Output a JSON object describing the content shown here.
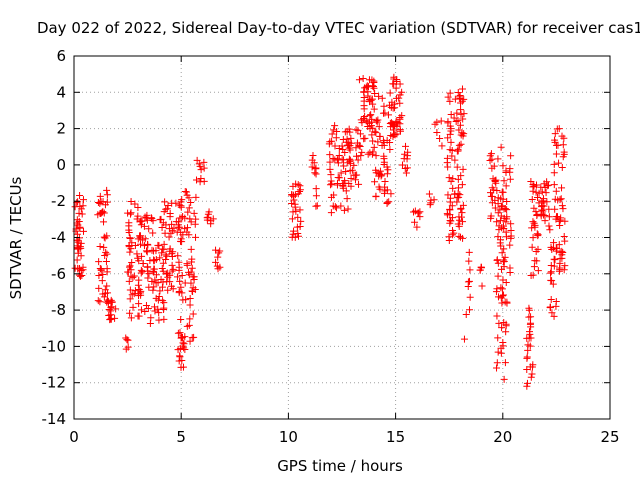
{
  "chart_data": {
    "type": "scatter",
    "title": "Day 022 of 2022, Sidereal Day-to-day VTEC variation (SDTVAR) for receiver cas1",
    "xlabel": "GPS time / hours",
    "ylabel": "SDTVAR / TECUs",
    "xlim": [
      0,
      25
    ],
    "ylim": [
      -14,
      6
    ],
    "xticks": [
      0,
      5,
      10,
      15,
      20,
      25
    ],
    "yticks": [
      -14,
      -12,
      -10,
      -8,
      -6,
      -4,
      -2,
      0,
      2,
      4,
      6
    ],
    "grid": true,
    "marker": "+",
    "series": [
      {
        "name": "SDTVAR",
        "color": "#ff0000",
        "clusters": [
          {
            "x": [
              0.05,
              0.45
            ],
            "y": [
              -6.2,
              -1.6
            ],
            "n": 45
          },
          {
            "x": [
              1.1,
              1.6
            ],
            "y": [
              -7.6,
              -1.4
            ],
            "n": 45
          },
          {
            "x": [
              1.6,
              1.95
            ],
            "y": [
              -8.6,
              -7.4
            ],
            "n": 18
          },
          {
            "x": [
              2.4,
              2.6
            ],
            "y": [
              -10.2,
              -9.3
            ],
            "n": 5
          },
          {
            "x": [
              2.5,
              3.5
            ],
            "y": [
              -8.6,
              -2.0
            ],
            "n": 90
          },
          {
            "x": [
              3.5,
              4.2
            ],
            "y": [
              -8.8,
              -2.6
            ],
            "n": 55
          },
          {
            "x": [
              4.2,
              5.0
            ],
            "y": [
              -7.0,
              -2.0
            ],
            "n": 55
          },
          {
            "x": [
              4.85,
              5.2
            ],
            "y": [
              -11.2,
              -9.0
            ],
            "n": 18
          },
          {
            "x": [
              4.9,
              5.7
            ],
            "y": [
              -9.8,
              -1.3
            ],
            "n": 65
          },
          {
            "x": [
              5.7,
              6.1
            ],
            "y": [
              -1.2,
              0.3
            ],
            "n": 10
          },
          {
            "x": [
              6.2,
              6.5
            ],
            "y": [
              -3.3,
              -2.5
            ],
            "n": 8
          },
          {
            "x": [
              6.6,
              6.85
            ],
            "y": [
              -5.8,
              -4.6
            ],
            "n": 8
          },
          {
            "x": [
              10.1,
              10.6
            ],
            "y": [
              -4.0,
              -0.9
            ],
            "n": 30
          },
          {
            "x": [
              11.1,
              11.4
            ],
            "y": [
              -3.6,
              0.6
            ],
            "n": 12
          },
          {
            "x": [
              11.9,
              12.8
            ],
            "y": [
              -2.7,
              2.2
            ],
            "n": 60
          },
          {
            "x": [
              12.8,
              13.3
            ],
            "y": [
              -1.2,
              2.0
            ],
            "n": 30
          },
          {
            "x": [
              13.3,
              14.0
            ],
            "y": [
              0.5,
              4.8
            ],
            "n": 55
          },
          {
            "x": [
              14.0,
              14.8
            ],
            "y": [
              -2.2,
              4.0
            ],
            "n": 60
          },
          {
            "x": [
              14.8,
              15.3
            ],
            "y": [
              1.5,
              4.9
            ],
            "n": 40
          },
          {
            "x": [
              15.3,
              15.6
            ],
            "y": [
              -0.6,
              1.1
            ],
            "n": 10
          },
          {
            "x": [
              15.8,
              16.2
            ],
            "y": [
              -3.6,
              -2.4
            ],
            "n": 8
          },
          {
            "x": [
              16.5,
              16.8
            ],
            "y": [
              -2.6,
              -1.6
            ],
            "n": 5
          },
          {
            "x": [
              16.8,
              17.2
            ],
            "y": [
              0.9,
              3.2
            ],
            "n": 6
          },
          {
            "x": [
              17.4,
              18.2
            ],
            "y": [
              -4.2,
              4.2
            ],
            "n": 95
          },
          {
            "x": [
              18.2,
              18.5
            ],
            "y": [
              -9.8,
              -4.6
            ],
            "n": 10
          },
          {
            "x": [
              18.9,
              19.3
            ],
            "y": [
              -7.0,
              -5.0
            ],
            "n": 6
          },
          {
            "x": [
              19.4,
              19.8
            ],
            "y": [
              -3.2,
              1.0
            ],
            "n": 25
          },
          {
            "x": [
              19.7,
              20.2
            ],
            "y": [
              -12.3,
              -2.0
            ],
            "n": 50
          },
          {
            "x": [
              19.9,
              20.4
            ],
            "y": [
              -8.6,
              2.1
            ],
            "n": 40
          },
          {
            "x": [
              21.1,
              21.4
            ],
            "y": [
              -12.2,
              -7.8
            ],
            "n": 25
          },
          {
            "x": [
              21.3,
              21.7
            ],
            "y": [
              -6.2,
              -0.9
            ],
            "n": 30
          },
          {
            "x": [
              21.6,
              22.2
            ],
            "y": [
              -3.6,
              -0.9
            ],
            "n": 30
          },
          {
            "x": [
              22.2,
              22.5
            ],
            "y": [
              -8.4,
              -4.0
            ],
            "n": 20
          },
          {
            "x": [
              22.4,
              22.9
            ],
            "y": [
              -5.9,
              2.1
            ],
            "n": 55
          }
        ]
      }
    ]
  }
}
